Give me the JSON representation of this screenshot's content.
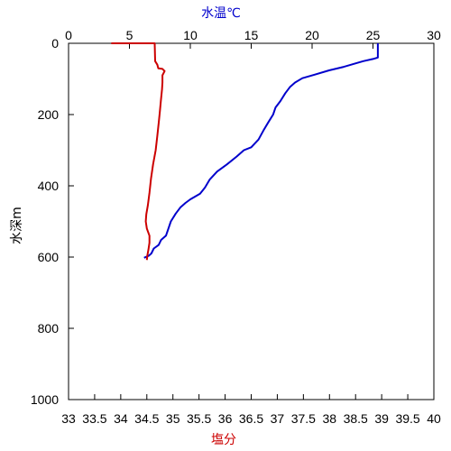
{
  "chart_data": [
    {
      "type": "line",
      "top_axis_title": "水温℃",
      "bottom_axis_title": "塩分",
      "y_axis_title": "水深m",
      "y_ticks": [
        "0",
        "200",
        "400",
        "600",
        "800",
        "1000"
      ],
      "top_ticks": [
        "0",
        "5",
        "10",
        "15",
        "20",
        "25",
        "30"
      ],
      "bottom_ticks": [
        "33",
        "33.5",
        "34",
        "34.5",
        "35",
        "35.5",
        "36",
        "36.5",
        "37",
        "37.5",
        "38",
        "38.5",
        "39",
        "39.5",
        "40"
      ],
      "ylim": [
        0,
        1000
      ],
      "y_inverted": true,
      "top_xlim": [
        0,
        30
      ],
      "bottom_xlim": [
        33,
        40
      ],
      "grid": false,
      "series": [
        {
          "axis": "top",
          "color": "#0000cc",
          "points": [
            {
              "x": 25.4,
              "y": 0
            },
            {
              "x": 25.4,
              "y": 40
            },
            {
              "x": 25.0,
              "y": 44
            },
            {
              "x": 24.2,
              "y": 50
            },
            {
              "x": 23.4,
              "y": 58
            },
            {
              "x": 22.6,
              "y": 66
            },
            {
              "x": 21.4,
              "y": 76
            },
            {
              "x": 20.2,
              "y": 88
            },
            {
              "x": 19.2,
              "y": 98
            },
            {
              "x": 18.6,
              "y": 110
            },
            {
              "x": 18.2,
              "y": 122
            },
            {
              "x": 17.8,
              "y": 140
            },
            {
              "x": 17.4,
              "y": 162
            },
            {
              "x": 17.0,
              "y": 180
            },
            {
              "x": 16.8,
              "y": 200
            },
            {
              "x": 16.4,
              "y": 222
            },
            {
              "x": 16.0,
              "y": 245
            },
            {
              "x": 15.6,
              "y": 270
            },
            {
              "x": 15.0,
              "y": 292
            },
            {
              "x": 14.4,
              "y": 300
            },
            {
              "x": 13.8,
              "y": 318
            },
            {
              "x": 13.0,
              "y": 340
            },
            {
              "x": 12.2,
              "y": 360
            },
            {
              "x": 11.6,
              "y": 382
            },
            {
              "x": 11.2,
              "y": 405
            },
            {
              "x": 10.8,
              "y": 422
            },
            {
              "x": 10.0,
              "y": 438
            },
            {
              "x": 9.6,
              "y": 448
            },
            {
              "x": 9.2,
              "y": 460
            },
            {
              "x": 8.8,
              "y": 478
            },
            {
              "x": 8.4,
              "y": 500
            },
            {
              "x": 8.2,
              "y": 520
            },
            {
              "x": 8.0,
              "y": 540
            },
            {
              "x": 7.6,
              "y": 552
            },
            {
              "x": 7.4,
              "y": 566
            },
            {
              "x": 7.0,
              "y": 576
            },
            {
              "x": 6.8,
              "y": 590
            },
            {
              "x": 6.6,
              "y": 596
            },
            {
              "x": 6.2,
              "y": 602
            }
          ]
        },
        {
          "axis": "bottom",
          "color": "#cc0000",
          "points": [
            {
              "x": 33.82,
              "y": 0
            },
            {
              "x": 34.65,
              "y": 0
            },
            {
              "x": 34.66,
              "y": 50
            },
            {
              "x": 34.7,
              "y": 60
            },
            {
              "x": 34.72,
              "y": 70
            },
            {
              "x": 34.8,
              "y": 72
            },
            {
              "x": 34.84,
              "y": 78
            },
            {
              "x": 34.8,
              "y": 90
            },
            {
              "x": 34.8,
              "y": 110
            },
            {
              "x": 34.79,
              "y": 130
            },
            {
              "x": 34.77,
              "y": 160
            },
            {
              "x": 34.75,
              "y": 190
            },
            {
              "x": 34.73,
              "y": 220
            },
            {
              "x": 34.7,
              "y": 260
            },
            {
              "x": 34.67,
              "y": 300
            },
            {
              "x": 34.62,
              "y": 340
            },
            {
              "x": 34.58,
              "y": 380
            },
            {
              "x": 34.55,
              "y": 420
            },
            {
              "x": 34.52,
              "y": 455
            },
            {
              "x": 34.49,
              "y": 480
            },
            {
              "x": 34.48,
              "y": 500
            },
            {
              "x": 34.5,
              "y": 520
            },
            {
              "x": 34.55,
              "y": 540
            },
            {
              "x": 34.55,
              "y": 560
            },
            {
              "x": 34.53,
              "y": 580
            },
            {
              "x": 34.51,
              "y": 595
            },
            {
              "x": 34.5,
              "y": 608
            }
          ]
        }
      ]
    }
  ]
}
